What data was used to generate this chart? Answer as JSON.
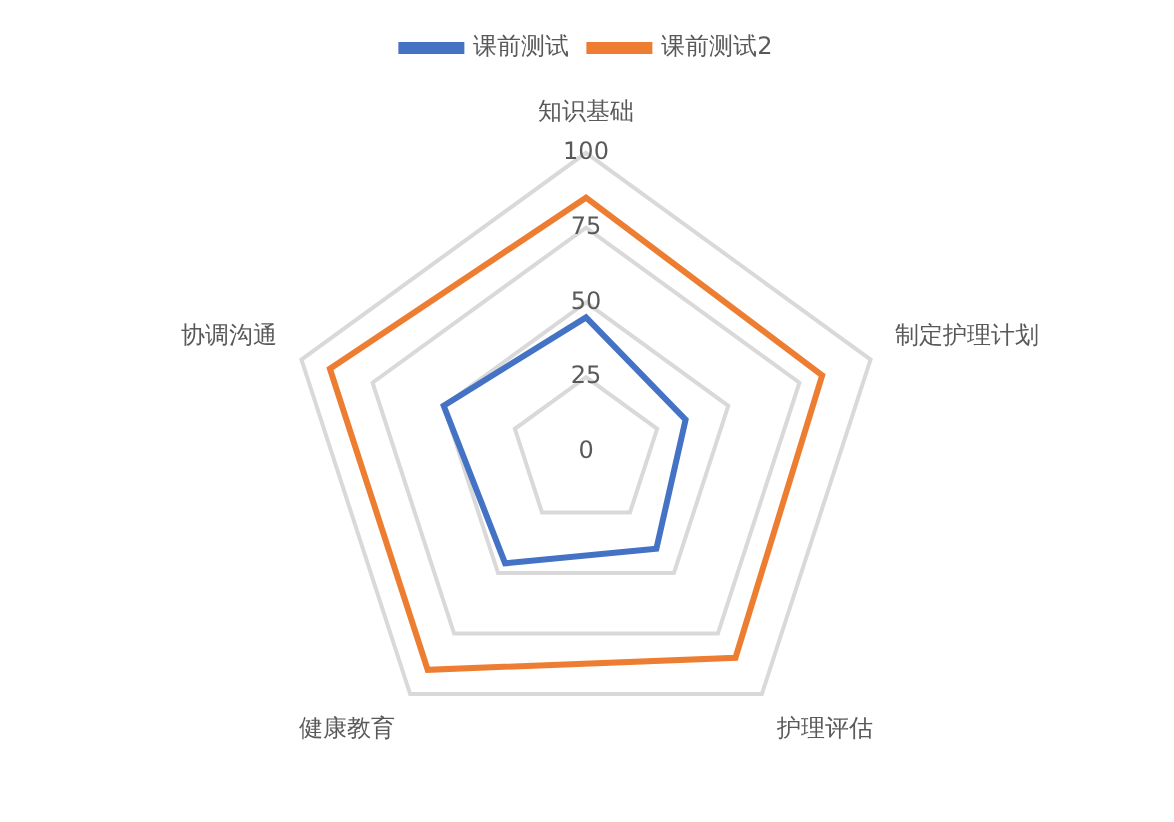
{
  "chart_data": {
    "type": "radar",
    "categories": [
      "知识基础",
      "制定护理计划",
      "护理评估",
      "健康教育",
      "协调沟通"
    ],
    "series": [
      {
        "name": "课前测试",
        "color": "#4472c4",
        "values": [
          45,
          35,
          40,
          46,
          50
        ]
      },
      {
        "name": "课前测试2",
        "color": "#ed7d31",
        "values": [
          85,
          83,
          85,
          90,
          90
        ]
      }
    ],
    "ylim": [
      0,
      100
    ],
    "yticks": [
      0,
      25,
      50,
      75,
      100
    ],
    "grid": true,
    "legend": "top",
    "marker": "none"
  }
}
